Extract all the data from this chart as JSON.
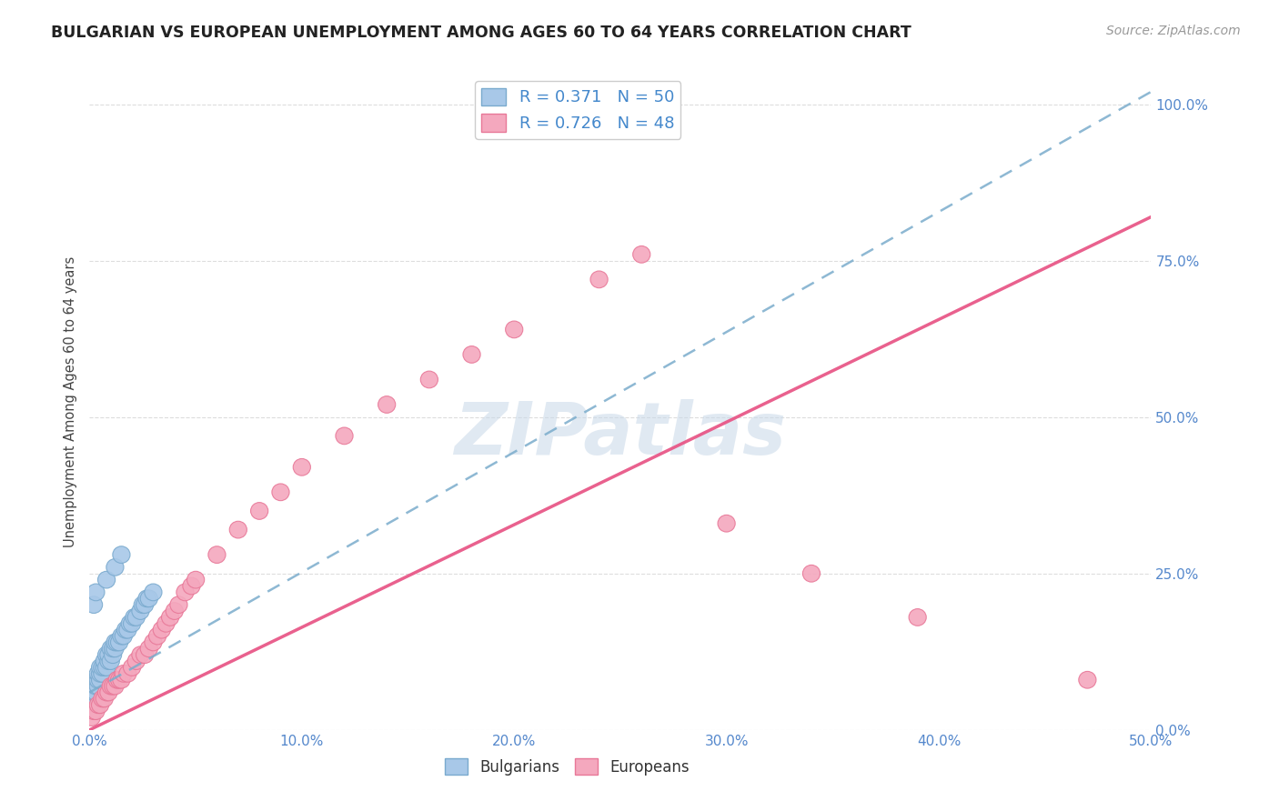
{
  "title": "BULGARIAN VS EUROPEAN UNEMPLOYMENT AMONG AGES 60 TO 64 YEARS CORRELATION CHART",
  "source": "Source: ZipAtlas.com",
  "ylabel": "Unemployment Among Ages 60 to 64 years",
  "xlim": [
    0.0,
    0.5
  ],
  "ylim": [
    0.0,
    1.05
  ],
  "xticks": [
    0.0,
    0.1,
    0.2,
    0.3,
    0.4,
    0.5
  ],
  "xticklabels": [
    "0.0%",
    "10.0%",
    "20.0%",
    "30.0%",
    "40.0%",
    "50.0%"
  ],
  "yticks": [
    0.0,
    0.25,
    0.5,
    0.75,
    1.0
  ],
  "yticklabels": [
    "0.0%",
    "25.0%",
    "50.0%",
    "75.0%",
    "100.0%"
  ],
  "blue_R": 0.371,
  "blue_N": 50,
  "pink_R": 0.726,
  "pink_N": 48,
  "blue_color": "#a8c8e8",
  "pink_color": "#f4a8be",
  "blue_edge_color": "#7aaace",
  "pink_edge_color": "#e87898",
  "blue_line_color": "#7aaccc",
  "pink_line_color": "#e85888",
  "watermark_color": "#c8d8e8",
  "tick_color": "#5588cc",
  "grid_color": "#dddddd",
  "title_color": "#222222",
  "source_color": "#999999",
  "legend_text_color": "#4488cc",
  "watermark": "ZIPatlas",
  "blue_scatter_x": [
    0.001,
    0.001,
    0.001,
    0.002,
    0.002,
    0.002,
    0.003,
    0.003,
    0.003,
    0.004,
    0.004,
    0.004,
    0.005,
    0.005,
    0.005,
    0.006,
    0.006,
    0.007,
    0.007,
    0.008,
    0.008,
    0.009,
    0.009,
    0.01,
    0.01,
    0.011,
    0.011,
    0.012,
    0.012,
    0.013,
    0.014,
    0.015,
    0.016,
    0.017,
    0.018,
    0.019,
    0.02,
    0.021,
    0.022,
    0.024,
    0.025,
    0.026,
    0.027,
    0.028,
    0.03,
    0.002,
    0.003,
    0.008,
    0.012,
    0.015
  ],
  "blue_scatter_y": [
    0.04,
    0.05,
    0.06,
    0.05,
    0.06,
    0.07,
    0.06,
    0.07,
    0.08,
    0.07,
    0.08,
    0.09,
    0.08,
    0.09,
    0.1,
    0.09,
    0.1,
    0.1,
    0.11,
    0.1,
    0.12,
    0.11,
    0.12,
    0.11,
    0.13,
    0.12,
    0.13,
    0.13,
    0.14,
    0.14,
    0.14,
    0.15,
    0.15,
    0.16,
    0.16,
    0.17,
    0.17,
    0.18,
    0.18,
    0.19,
    0.2,
    0.2,
    0.21,
    0.21,
    0.22,
    0.2,
    0.22,
    0.24,
    0.26,
    0.28
  ],
  "pink_scatter_x": [
    0.001,
    0.002,
    0.003,
    0.004,
    0.005,
    0.006,
    0.007,
    0.008,
    0.009,
    0.01,
    0.011,
    0.012,
    0.013,
    0.014,
    0.015,
    0.016,
    0.018,
    0.02,
    0.022,
    0.024,
    0.026,
    0.028,
    0.03,
    0.032,
    0.034,
    0.036,
    0.038,
    0.04,
    0.042,
    0.045,
    0.048,
    0.05,
    0.06,
    0.07,
    0.08,
    0.09,
    0.1,
    0.12,
    0.14,
    0.16,
    0.18,
    0.2,
    0.24,
    0.26,
    0.3,
    0.34,
    0.39,
    0.47
  ],
  "pink_scatter_y": [
    0.02,
    0.03,
    0.03,
    0.04,
    0.04,
    0.05,
    0.05,
    0.06,
    0.06,
    0.07,
    0.07,
    0.07,
    0.08,
    0.08,
    0.08,
    0.09,
    0.09,
    0.1,
    0.11,
    0.12,
    0.12,
    0.13,
    0.14,
    0.15,
    0.16,
    0.17,
    0.18,
    0.19,
    0.2,
    0.22,
    0.23,
    0.24,
    0.28,
    0.32,
    0.35,
    0.38,
    0.42,
    0.47,
    0.52,
    0.56,
    0.6,
    0.64,
    0.72,
    0.76,
    0.33,
    0.25,
    0.18,
    0.08
  ],
  "blue_line_x0": 0.0,
  "blue_line_y0": 0.06,
  "blue_line_x1": 0.5,
  "blue_line_y1": 1.02,
  "pink_line_x0": 0.0,
  "pink_line_y0": 0.0,
  "pink_line_x1": 0.5,
  "pink_line_y1": 0.82
}
